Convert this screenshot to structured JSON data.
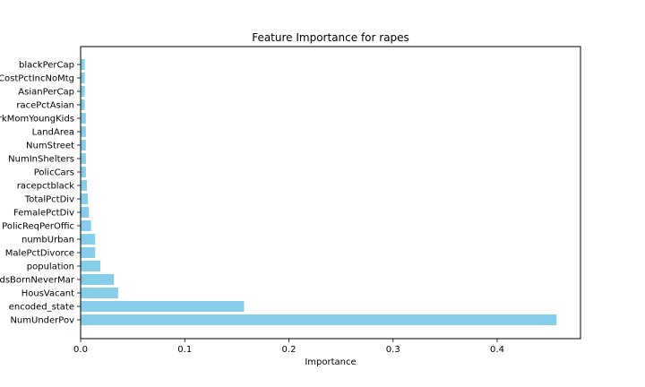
{
  "chart_data": {
    "type": "bar",
    "orientation": "horizontal",
    "title": "Feature Importance for rapes",
    "xlabel": "Importance",
    "ylabel": "",
    "xlim": [
      0,
      0.48
    ],
    "xticks": [
      0.0,
      0.1,
      0.2,
      0.3,
      0.4
    ],
    "xtick_labels": [
      "0.0",
      "0.1",
      "0.2",
      "0.3",
      "0.4"
    ],
    "categories": [
      "NumUnderPov",
      "encoded_state",
      "HousVacant",
      "PctKidsBornNeverMar",
      "population",
      "MalePctDivorce",
      "numbUrban",
      "PolicReqPerOffic",
      "FemalePctDiv",
      "TotalPctDiv",
      "racepctblack",
      "PolicCars",
      "NumInShelters",
      "NumStreet",
      "LandArea",
      "PctWorkMomYoungKids",
      "racePctAsian",
      "AsianPerCap",
      "OwnOccCostPctIncNoMtg",
      "blackPerCap"
    ],
    "values": [
      0.457,
      0.157,
      0.036,
      0.032,
      0.019,
      0.014,
      0.014,
      0.01,
      0.008,
      0.007,
      0.006,
      0.005,
      0.005,
      0.005,
      0.005,
      0.005,
      0.004,
      0.004,
      0.004,
      0.004
    ],
    "bar_color": "#87ceeb",
    "grid": false,
    "legend": "none"
  }
}
